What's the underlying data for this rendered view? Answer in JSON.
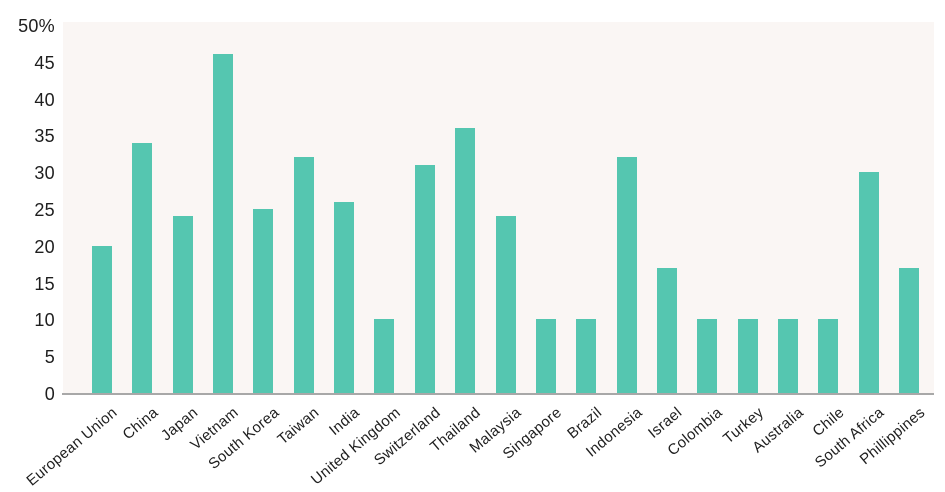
{
  "chart": {
    "title": "",
    "colors": {
      "bar": "#55c6b0",
      "plot_background": "#faf6f4",
      "page_background": "#ffffff",
      "axis_line": "#a8a8a8",
      "text": "#1e1e1e"
    }
  },
  "chart_data": {
    "type": "bar",
    "title": "",
    "xlabel": "",
    "ylabel": "",
    "categories": [
      "European Union",
      "China",
      "Japan",
      "Vietnam",
      "South Korea",
      "Taiwan",
      "India",
      "United Kingdom",
      "Switzerland",
      "Thailand",
      "Malaysia",
      "Singapore",
      "Brazil",
      "Indonesia",
      "Israel",
      "Colombia",
      "Turkey",
      "Australia",
      "Chile",
      "South Africa",
      "Phillippines"
    ],
    "values": [
      20,
      34,
      24,
      46,
      25,
      32,
      26,
      10,
      31,
      36,
      24,
      10,
      10,
      32,
      17,
      10,
      10,
      10,
      10,
      30,
      17
    ],
    "ylim": [
      0,
      50
    ],
    "ytick_interval": 5,
    "ytick_labels": [
      "0",
      "5",
      "10",
      "15",
      "20",
      "25",
      "30",
      "35",
      "40",
      "45",
      "50%"
    ],
    "grid": false,
    "legend": null
  }
}
